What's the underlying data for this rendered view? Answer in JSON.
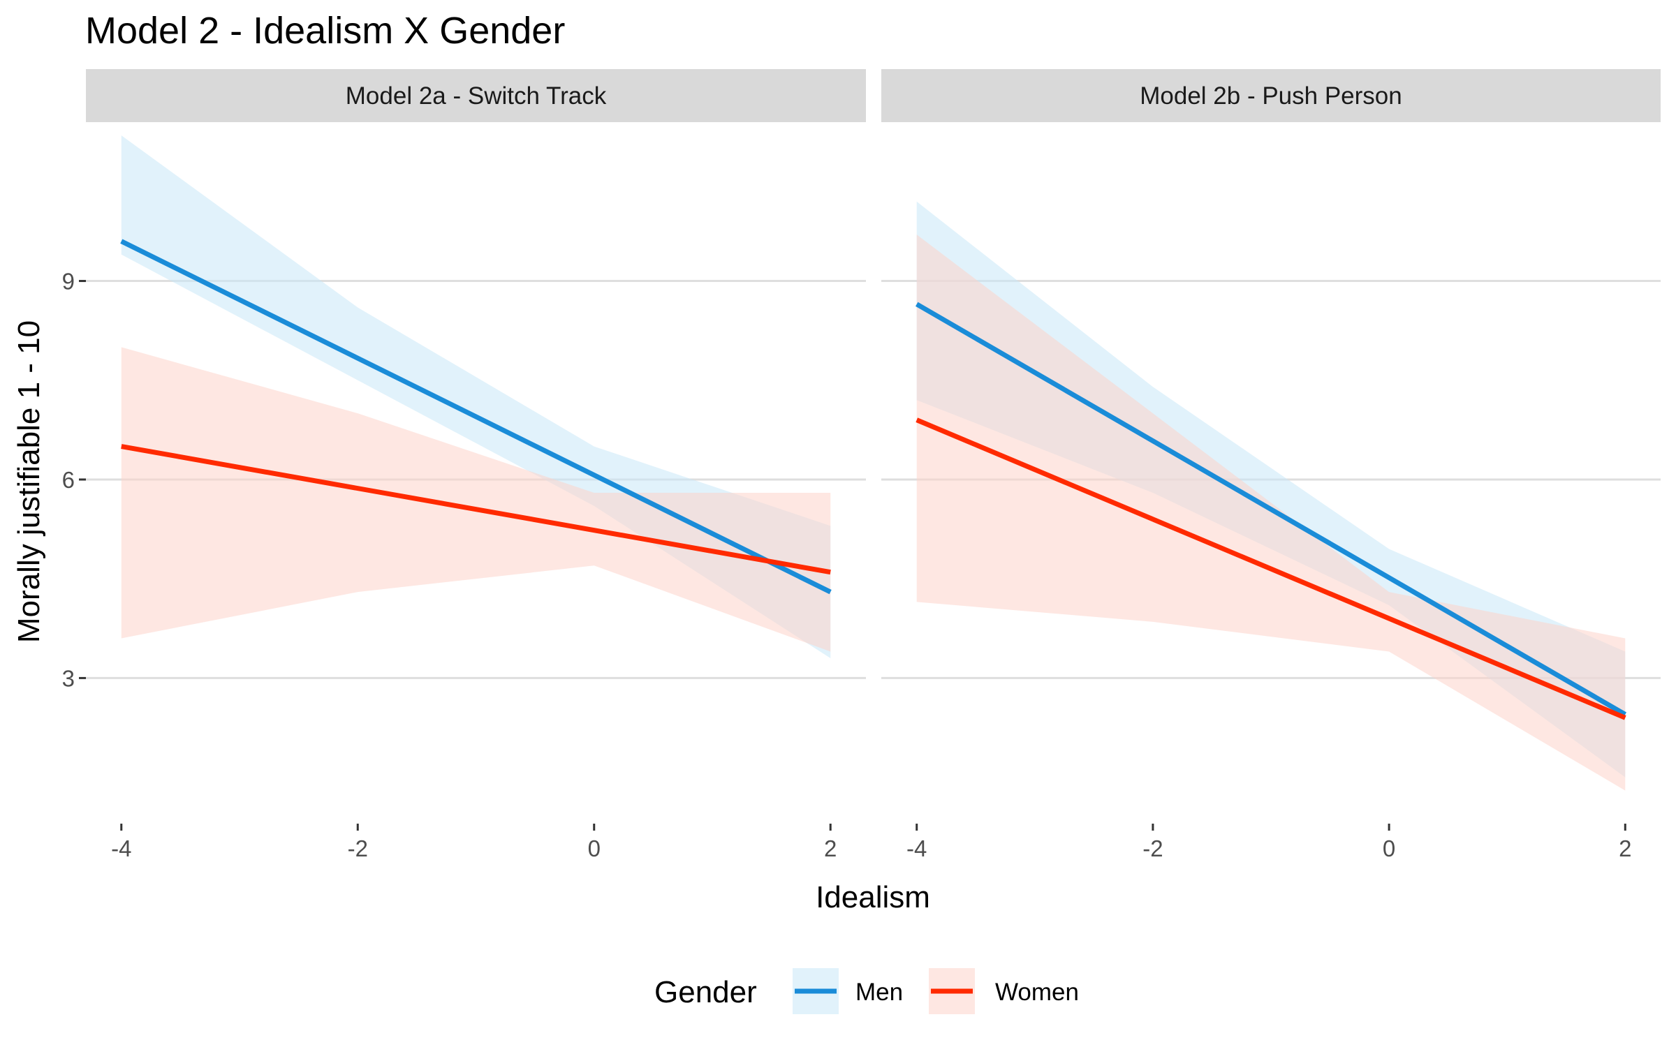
{
  "chart_data": {
    "type": "line",
    "title": "Model 2 - Idealism X Gender",
    "xlabel": "Idealism",
    "ylabel": "Morally justifiable 1 - 10",
    "x_ticks": [
      -4,
      -2,
      0,
      2
    ],
    "x_tick_labels": [
      "-4",
      "-2",
      "0",
      "2"
    ],
    "y_ticks": [
      3,
      6,
      9
    ],
    "y_tick_labels": [
      "3",
      "6",
      "9"
    ],
    "xlim": [
      -4.3,
      2.3
    ],
    "ylim": [
      0.8,
      11.4
    ],
    "grid": "horizontal major",
    "legend": {
      "title": "Gender",
      "position": "bottom",
      "entries": [
        "Men",
        "Women"
      ]
    },
    "colors": {
      "Men": "#1a8cd8",
      "Women": "#ff2a00",
      "Men_ribbon": "#c9e8f7",
      "Women_ribbon": "#fdd3cb"
    },
    "panels": [
      {
        "strip_label": "Model 2a - Switch Track",
        "series": [
          {
            "name": "Men",
            "x": [
              -4,
              2
            ],
            "y": [
              9.6,
              4.3
            ],
            "ribbon_x": [
              -4,
              -2,
              0,
              2
            ],
            "ribbon_lower": [
              9.4,
              7.5,
              5.6,
              3.3
            ],
            "ribbon_upper": [
              11.2,
              8.6,
              6.5,
              5.3
            ]
          },
          {
            "name": "Women",
            "x": [
              -4,
              2
            ],
            "y": [
              6.5,
              4.6
            ],
            "ribbon_x": [
              -4,
              -2,
              0,
              2
            ],
            "ribbon_lower": [
              3.6,
              4.3,
              4.7,
              3.4
            ],
            "ribbon_upper": [
              8.0,
              7.0,
              5.8,
              5.8
            ]
          }
        ]
      },
      {
        "strip_label": "Model 2b - Push Person",
        "series": [
          {
            "name": "Men",
            "x": [
              -4,
              2
            ],
            "y": [
              8.65,
              2.45
            ],
            "ribbon_x": [
              -4,
              -2,
              0,
              2
            ],
            "ribbon_lower": [
              7.2,
              5.8,
              4.1,
              1.5
            ],
            "ribbon_upper": [
              10.2,
              7.4,
              4.95,
              3.4
            ]
          },
          {
            "name": "Women",
            "x": [
              -4,
              2
            ],
            "y": [
              6.9,
              2.4
            ],
            "ribbon_x": [
              -4,
              -2,
              0,
              2
            ],
            "ribbon_lower": [
              4.15,
              3.85,
              3.4,
              1.3
            ],
            "ribbon_upper": [
              9.7,
              7.0,
              4.3,
              3.6
            ]
          }
        ]
      }
    ]
  }
}
